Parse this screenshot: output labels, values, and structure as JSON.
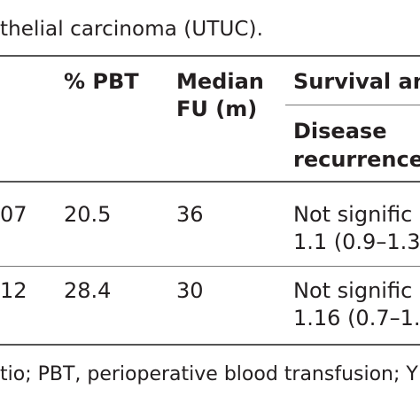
{
  "caption": "thelial carcinoma (UTUC).",
  "table": {
    "headers": {
      "pbt": "% PBT",
      "median_line1": "Median",
      "median_line2": "FU (m)",
      "survival": "Survival an",
      "disease_line1": "Disease",
      "disease_line2": "recurrence"
    },
    "rows": [
      {
        "n": "07",
        "pbt": "20.5",
        "fu": "36",
        "recurrence_line1": "Not signific",
        "recurrence_line2": "1.1 (0.9–1.3"
      },
      {
        "n": "12",
        "pbt": "28.4",
        "fu": "30",
        "recurrence_line1": "Not signific",
        "recurrence_line2": "1.16 (0.7–1."
      }
    ]
  },
  "footnote": "tio; PBT, perioperative blood transfusion; Y"
}
